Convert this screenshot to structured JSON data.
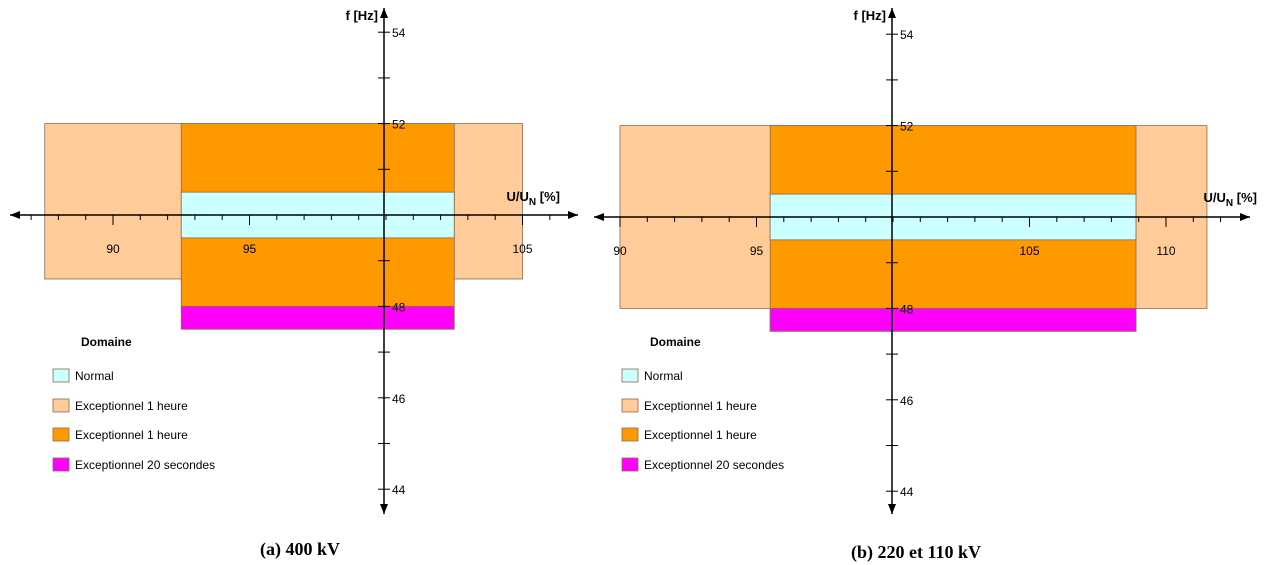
{
  "chart_data": [
    {
      "type": "area",
      "caption": "(a) 400 kV",
      "xlabel": "U/U",
      "xlabel_sub": "N",
      "xlabel_unit": " [%]",
      "ylabel": "f [Hz]",
      "x_ticks": [
        90,
        95,
        105
      ],
      "y_ticks": [
        54,
        52,
        48,
        46,
        44
      ],
      "regions": [
        {
          "domain": "exceptional_1h_light",
          "x": [
            87.5,
            105
          ],
          "y": [
            48.6,
            52
          ]
        },
        {
          "domain": "exceptional_1h_dark",
          "x": [
            92.5,
            102.5
          ],
          "y": [
            48,
            52
          ]
        },
        {
          "domain": "normal",
          "x": [
            92.5,
            102.5
          ],
          "y": [
            49.5,
            50.5
          ]
        },
        {
          "domain": "exceptional_20s",
          "x": [
            92.5,
            102.5
          ],
          "y": [
            47.5,
            48
          ]
        }
      ],
      "legend": {
        "title": "Domaine",
        "items": [
          {
            "label": "Normal",
            "color": "#ccffff"
          },
          {
            "label": "Exceptionnel 1 heure",
            "color": "#ffcc99"
          },
          {
            "label": "Exceptionnel 1 heure",
            "color": "#ff9900"
          },
          {
            "label": "Exceptionnel 20 secondes",
            "color": "#ff00ff"
          }
        ]
      }
    },
    {
      "type": "area",
      "caption": "(b) 220 et 110 kV",
      "xlabel": "U/U",
      "xlabel_sub": "N",
      "xlabel_unit": " [%]",
      "ylabel": "f [Hz]",
      "x_ticks": [
        90,
        95,
        105,
        110
      ],
      "y_ticks": [
        54,
        52,
        48,
        46,
        44
      ],
      "regions": [
        {
          "domain": "exceptional_1h_light",
          "x": [
            90,
            111.5
          ],
          "y": [
            48,
            52
          ]
        },
        {
          "domain": "exceptional_1h_dark",
          "x": [
            95.5,
            108.9
          ],
          "y": [
            47.5,
            52
          ]
        },
        {
          "domain": "normal",
          "x": [
            95.5,
            108.9
          ],
          "y": [
            49.5,
            50.5
          ]
        },
        {
          "domain": "exceptional_20s",
          "x": [
            95.5,
            108.9
          ],
          "y": [
            47.5,
            48
          ]
        }
      ],
      "legend": {
        "title": "Domaine",
        "items": [
          {
            "label": "Normal",
            "color": "#ccffff"
          },
          {
            "label": "Exceptionnel 1 heure",
            "color": "#ffcc99"
          },
          {
            "label": "Exceptionnel 1 heure",
            "color": "#ff9900"
          },
          {
            "label": "Exceptionnel 20 secondes",
            "color": "#ff00ff"
          }
        ]
      }
    }
  ],
  "colors": {
    "exceptional_1h_light": "#ffcc99",
    "exceptional_1h_dark": "#ff9900",
    "normal": "#ccffff",
    "exceptional_20s": "#ff00ff",
    "axis": "#000000",
    "region_border": "#8c6a4a"
  }
}
